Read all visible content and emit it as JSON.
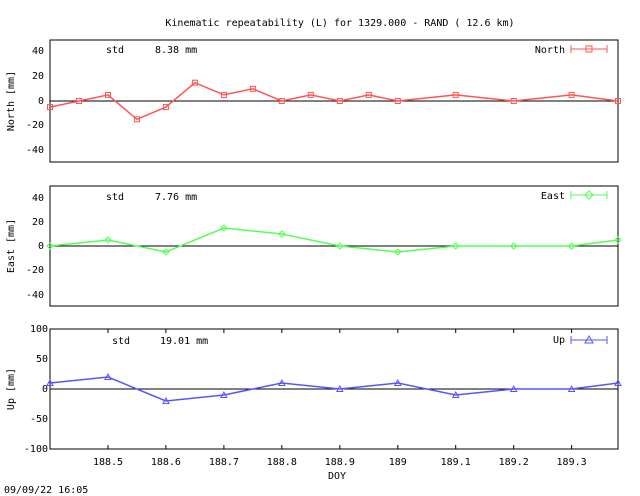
{
  "title": "Kinematic repeatability (L) for 1329.000 - RAND  ( 12.6 km)",
  "timestamp": "09/09/22 16:05",
  "colors": {
    "north": "#ff5555",
    "east": "#55ff55",
    "up": "#5555ff"
  },
  "chart_data": [
    {
      "type": "scatter",
      "name": "North",
      "ylabel": "North [mm]",
      "std_label": "std",
      "std_value": "8.38 mm",
      "xlim": [
        188.4,
        189.38
      ],
      "ylim": [
        -50,
        50
      ],
      "yticks": [
        "40",
        "20",
        "0",
        "-20",
        "-40"
      ],
      "segments": [
        {
          "x": [
            188.4,
            188.45,
            188.5,
            188.55,
            188.6,
            188.65,
            188.7,
            188.75,
            188.8,
            188.85,
            188.9,
            188.95,
            189.0,
            189.1,
            189.2,
            189.3,
            189.38
          ],
          "y": [
            -5,
            0,
            5,
            -15,
            -5,
            15,
            5,
            10,
            0,
            5,
            0,
            5,
            0,
            5,
            0,
            5,
            0
          ]
        }
      ]
    },
    {
      "type": "scatter",
      "name": "East",
      "ylabel": "East [mm]",
      "std_label": "std",
      "std_value": "7.76 mm",
      "xlim": [
        188.4,
        189.38
      ],
      "ylim": [
        -50,
        50
      ],
      "yticks": [
        "40",
        "20",
        "0",
        "-20",
        "-40"
      ],
      "segments": [
        {
          "x": [
            188.4,
            188.5,
            188.6,
            188.7,
            188.8,
            188.9,
            189.0,
            189.1,
            189.2,
            189.3,
            189.38
          ],
          "y": [
            0,
            5,
            -5,
            15,
            10,
            0,
            -5,
            0,
            0,
            0,
            5
          ]
        }
      ]
    },
    {
      "type": "scatter",
      "name": "Up",
      "ylabel": "Up [mm]",
      "std_label": "std",
      "std_value": "19.01 mm",
      "xlabel": "DOY",
      "xlim": [
        188.4,
        189.38
      ],
      "ylim": [
        -100,
        100
      ],
      "yticks": [
        "100",
        "50",
        "0",
        "-50",
        "-100"
      ],
      "xticks": [
        "188.5",
        "188.6",
        "188.7",
        "188.8",
        "188.9",
        "189",
        "189.1",
        "189.2",
        "189.3"
      ],
      "segments": [
        {
          "x": [
            188.4,
            188.5,
            188.6,
            188.7,
            188.8,
            188.9,
            189.0,
            189.1,
            189.2,
            189.3,
            189.38
          ],
          "y": [
            10,
            20,
            -20,
            -10,
            10,
            0,
            10,
            -10,
            0,
            0,
            10
          ]
        }
      ]
    }
  ]
}
